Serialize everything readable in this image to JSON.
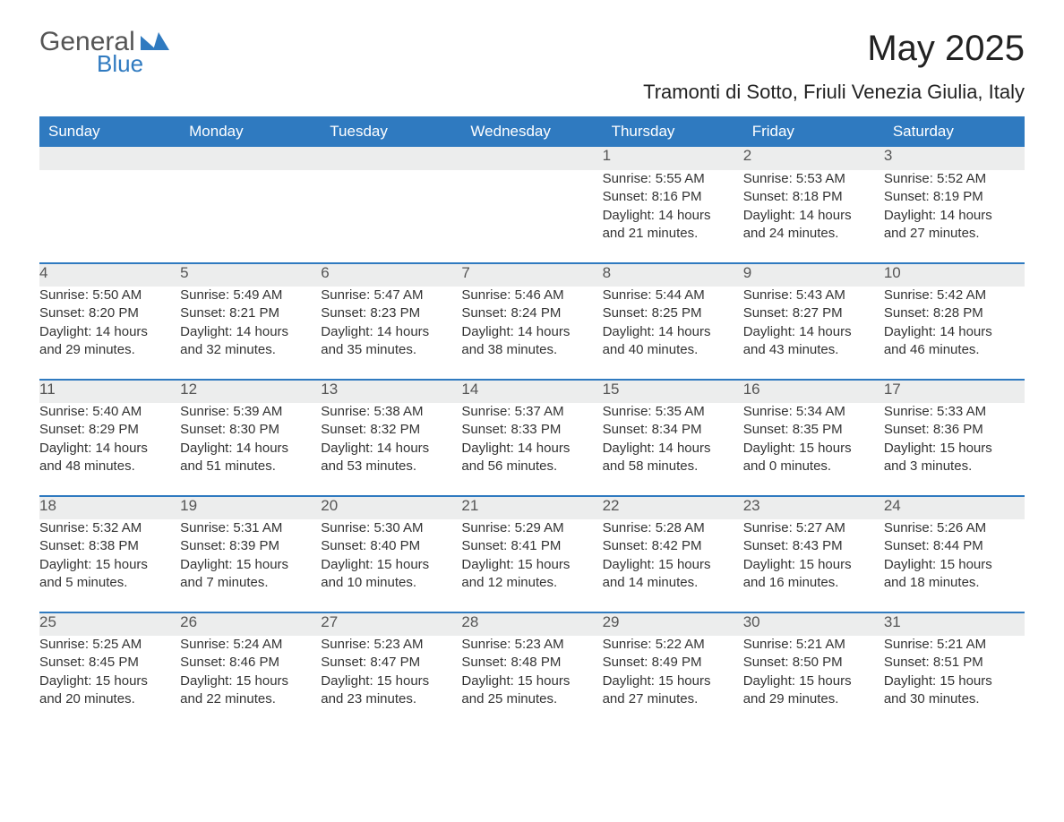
{
  "brand": {
    "text1": "General",
    "text2": "Blue",
    "mark_color": "#2f7ac0",
    "text1_color": "#555555",
    "text2_color": "#2f7ac0"
  },
  "title": "May 2025",
  "location": "Tramonti di Sotto, Friuli Venezia Giulia, Italy",
  "colors": {
    "header_bg": "#2f7ac0",
    "header_text": "#ffffff",
    "daynum_bg": "#eceded",
    "daynum_text": "#555555",
    "divider": "#2f7ac0",
    "body_bg": "#ffffff",
    "body_text": "#333333"
  },
  "fonts": {
    "title_pt": 40,
    "subtitle_pt": 22,
    "header_pt": 17,
    "daynum_pt": 17,
    "detail_pt": 15,
    "family": "Helvetica Neue, Arial, sans-serif"
  },
  "day_headers": [
    "Sunday",
    "Monday",
    "Tuesday",
    "Wednesday",
    "Thursday",
    "Friday",
    "Saturday"
  ],
  "weeks": [
    [
      null,
      null,
      null,
      null,
      {
        "n": "1",
        "sunrise": "Sunrise: 5:55 AM",
        "sunset": "Sunset: 8:16 PM",
        "day1": "Daylight: 14 hours",
        "day2": "and 21 minutes."
      },
      {
        "n": "2",
        "sunrise": "Sunrise: 5:53 AM",
        "sunset": "Sunset: 8:18 PM",
        "day1": "Daylight: 14 hours",
        "day2": "and 24 minutes."
      },
      {
        "n": "3",
        "sunrise": "Sunrise: 5:52 AM",
        "sunset": "Sunset: 8:19 PM",
        "day1": "Daylight: 14 hours",
        "day2": "and 27 minutes."
      }
    ],
    [
      {
        "n": "4",
        "sunrise": "Sunrise: 5:50 AM",
        "sunset": "Sunset: 8:20 PM",
        "day1": "Daylight: 14 hours",
        "day2": "and 29 minutes."
      },
      {
        "n": "5",
        "sunrise": "Sunrise: 5:49 AM",
        "sunset": "Sunset: 8:21 PM",
        "day1": "Daylight: 14 hours",
        "day2": "and 32 minutes."
      },
      {
        "n": "6",
        "sunrise": "Sunrise: 5:47 AM",
        "sunset": "Sunset: 8:23 PM",
        "day1": "Daylight: 14 hours",
        "day2": "and 35 minutes."
      },
      {
        "n": "7",
        "sunrise": "Sunrise: 5:46 AM",
        "sunset": "Sunset: 8:24 PM",
        "day1": "Daylight: 14 hours",
        "day2": "and 38 minutes."
      },
      {
        "n": "8",
        "sunrise": "Sunrise: 5:44 AM",
        "sunset": "Sunset: 8:25 PM",
        "day1": "Daylight: 14 hours",
        "day2": "and 40 minutes."
      },
      {
        "n": "9",
        "sunrise": "Sunrise: 5:43 AM",
        "sunset": "Sunset: 8:27 PM",
        "day1": "Daylight: 14 hours",
        "day2": "and 43 minutes."
      },
      {
        "n": "10",
        "sunrise": "Sunrise: 5:42 AM",
        "sunset": "Sunset: 8:28 PM",
        "day1": "Daylight: 14 hours",
        "day2": "and 46 minutes."
      }
    ],
    [
      {
        "n": "11",
        "sunrise": "Sunrise: 5:40 AM",
        "sunset": "Sunset: 8:29 PM",
        "day1": "Daylight: 14 hours",
        "day2": "and 48 minutes."
      },
      {
        "n": "12",
        "sunrise": "Sunrise: 5:39 AM",
        "sunset": "Sunset: 8:30 PM",
        "day1": "Daylight: 14 hours",
        "day2": "and 51 minutes."
      },
      {
        "n": "13",
        "sunrise": "Sunrise: 5:38 AM",
        "sunset": "Sunset: 8:32 PM",
        "day1": "Daylight: 14 hours",
        "day2": "and 53 minutes."
      },
      {
        "n": "14",
        "sunrise": "Sunrise: 5:37 AM",
        "sunset": "Sunset: 8:33 PM",
        "day1": "Daylight: 14 hours",
        "day2": "and 56 minutes."
      },
      {
        "n": "15",
        "sunrise": "Sunrise: 5:35 AM",
        "sunset": "Sunset: 8:34 PM",
        "day1": "Daylight: 14 hours",
        "day2": "and 58 minutes."
      },
      {
        "n": "16",
        "sunrise": "Sunrise: 5:34 AM",
        "sunset": "Sunset: 8:35 PM",
        "day1": "Daylight: 15 hours",
        "day2": "and 0 minutes."
      },
      {
        "n": "17",
        "sunrise": "Sunrise: 5:33 AM",
        "sunset": "Sunset: 8:36 PM",
        "day1": "Daylight: 15 hours",
        "day2": "and 3 minutes."
      }
    ],
    [
      {
        "n": "18",
        "sunrise": "Sunrise: 5:32 AM",
        "sunset": "Sunset: 8:38 PM",
        "day1": "Daylight: 15 hours",
        "day2": "and 5 minutes."
      },
      {
        "n": "19",
        "sunrise": "Sunrise: 5:31 AM",
        "sunset": "Sunset: 8:39 PM",
        "day1": "Daylight: 15 hours",
        "day2": "and 7 minutes."
      },
      {
        "n": "20",
        "sunrise": "Sunrise: 5:30 AM",
        "sunset": "Sunset: 8:40 PM",
        "day1": "Daylight: 15 hours",
        "day2": "and 10 minutes."
      },
      {
        "n": "21",
        "sunrise": "Sunrise: 5:29 AM",
        "sunset": "Sunset: 8:41 PM",
        "day1": "Daylight: 15 hours",
        "day2": "and 12 minutes."
      },
      {
        "n": "22",
        "sunrise": "Sunrise: 5:28 AM",
        "sunset": "Sunset: 8:42 PM",
        "day1": "Daylight: 15 hours",
        "day2": "and 14 minutes."
      },
      {
        "n": "23",
        "sunrise": "Sunrise: 5:27 AM",
        "sunset": "Sunset: 8:43 PM",
        "day1": "Daylight: 15 hours",
        "day2": "and 16 minutes."
      },
      {
        "n": "24",
        "sunrise": "Sunrise: 5:26 AM",
        "sunset": "Sunset: 8:44 PM",
        "day1": "Daylight: 15 hours",
        "day2": "and 18 minutes."
      }
    ],
    [
      {
        "n": "25",
        "sunrise": "Sunrise: 5:25 AM",
        "sunset": "Sunset: 8:45 PM",
        "day1": "Daylight: 15 hours",
        "day2": "and 20 minutes."
      },
      {
        "n": "26",
        "sunrise": "Sunrise: 5:24 AM",
        "sunset": "Sunset: 8:46 PM",
        "day1": "Daylight: 15 hours",
        "day2": "and 22 minutes."
      },
      {
        "n": "27",
        "sunrise": "Sunrise: 5:23 AM",
        "sunset": "Sunset: 8:47 PM",
        "day1": "Daylight: 15 hours",
        "day2": "and 23 minutes."
      },
      {
        "n": "28",
        "sunrise": "Sunrise: 5:23 AM",
        "sunset": "Sunset: 8:48 PM",
        "day1": "Daylight: 15 hours",
        "day2": "and 25 minutes."
      },
      {
        "n": "29",
        "sunrise": "Sunrise: 5:22 AM",
        "sunset": "Sunset: 8:49 PM",
        "day1": "Daylight: 15 hours",
        "day2": "and 27 minutes."
      },
      {
        "n": "30",
        "sunrise": "Sunrise: 5:21 AM",
        "sunset": "Sunset: 8:50 PM",
        "day1": "Daylight: 15 hours",
        "day2": "and 29 minutes."
      },
      {
        "n": "31",
        "sunrise": "Sunrise: 5:21 AM",
        "sunset": "Sunset: 8:51 PM",
        "day1": "Daylight: 15 hours",
        "day2": "and 30 minutes."
      }
    ]
  ]
}
